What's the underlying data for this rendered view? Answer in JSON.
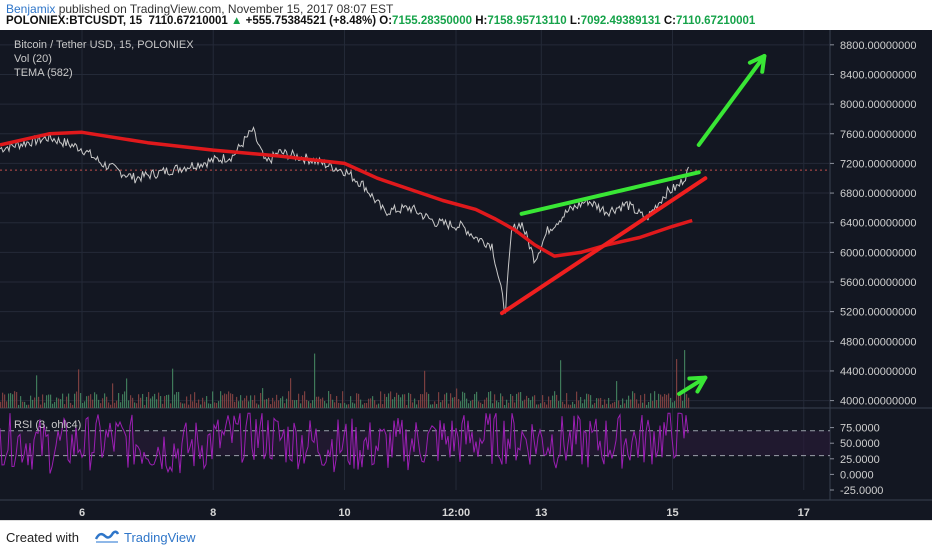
{
  "header": {
    "author": "Benjamix",
    "published_text": "published on TradingView.com, November 15, 2017 08:07 EST",
    "symbol": "POLONIEX:BTCUSDT, 15",
    "last": "7110.67210001",
    "change": "+555.75384521 (+8.48%)",
    "o_label": "O:",
    "o_value": "7155.28350000",
    "h_label": "H:",
    "h_value": "7158.95713110",
    "l_label": "L:",
    "l_value": "7092.49389131",
    "c_label": "C:",
    "c_value": "7110.67210001"
  },
  "legend": {
    "title": "Bitcoin / Tether USD, 15, POLONIEX",
    "vol": "Vol (20)",
    "tema": "TEMA (582)",
    "rsi": "RSI (3, ohlc4)"
  },
  "footer": {
    "created_with": "Created with",
    "brand": "TradingView"
  },
  "colors": {
    "background": "#131722",
    "price": "#c8c8c8",
    "tema": "#e0191c",
    "trend_green": "#39e635",
    "trend_red": "#ef1f1f",
    "rsi": "#9b1fb3",
    "accent": "#2f76c9"
  },
  "chart_data": {
    "type": "line",
    "series": [
      {
        "name": "Bitcoin / Tether USD, 15, POLONIEX",
        "x": [
          4.75,
          5.0,
          5.5,
          6.0,
          6.3,
          6.8,
          7.3,
          7.8,
          8.3,
          8.6,
          8.8,
          9.0,
          9.5,
          10.0,
          10.3,
          10.6,
          11.0,
          11.4,
          11.8,
          12.0,
          12.25,
          12.45,
          12.55,
          12.7,
          12.9,
          13.1,
          13.4,
          13.7,
          14.0,
          14.3,
          14.6,
          14.9,
          15.1,
          15.25
        ],
        "y": [
          7400,
          7450,
          7550,
          7400,
          7200,
          7000,
          7100,
          7200,
          7300,
          7650,
          7200,
          7350,
          7250,
          7100,
          6900,
          6550,
          6600,
          6400,
          6350,
          6200,
          6100,
          5200,
          6300,
          6400,
          5900,
          6300,
          6550,
          6700,
          6550,
          6650,
          6450,
          6800,
          6900,
          7110
        ]
      },
      {
        "name": "TEMA (582)",
        "x": [
          4.75,
          5.5,
          6.0,
          7.0,
          8.0,
          9.0,
          9.5,
          10.0,
          10.5,
          11.0,
          11.5,
          12.0,
          12.3,
          12.6,
          12.9,
          13.2,
          13.6,
          14.0,
          14.5,
          15.0,
          15.3
        ],
        "y": [
          7450,
          7600,
          7620,
          7480,
          7380,
          7300,
          7250,
          7200,
          7000,
          6850,
          6700,
          6580,
          6450,
          6300,
          6100,
          5950,
          6000,
          6100,
          6200,
          6350,
          6430
        ]
      },
      {
        "name": "RSI (3, ohlc4)",
        "x": [
          4.75,
          5.5,
          6.5,
          7.5,
          8.5,
          9.5,
          10.5,
          11.5,
          12.5,
          13.5,
          14.5,
          15.25
        ],
        "y": [
          60,
          45,
          55,
          40,
          65,
          50,
          45,
          55,
          60,
          50,
          55,
          70
        ]
      }
    ],
    "trendlines": [
      {
        "color": "green",
        "from": [
          12.7,
          6520
        ],
        "to": [
          15.4,
          7080
        ]
      },
      {
        "color": "red",
        "from": [
          12.4,
          5180
        ],
        "to": [
          15.5,
          7000
        ]
      },
      {
        "color": "green-arrow",
        "from": [
          15.4,
          7450
        ],
        "to": [
          16.4,
          8650
        ]
      },
      {
        "color": "green-arrow-volume",
        "from": [
          15.1,
          4090
        ],
        "to": [
          15.5,
          4310
        ]
      }
    ],
    "xlabel": "",
    "ylabel": "",
    "x_ticks": [
      {
        "x": 6,
        "label": "6"
      },
      {
        "x": 8,
        "label": "8"
      },
      {
        "x": 10,
        "label": "10"
      },
      {
        "x": 11.7,
        "label": "12:00"
      },
      {
        "x": 13,
        "label": "13"
      },
      {
        "x": 15,
        "label": "15"
      },
      {
        "x": 17,
        "label": "17"
      }
    ],
    "xlim": [
      4.75,
      17.4
    ],
    "ylim": [
      3900,
      9000
    ],
    "y_ticks": [
      "8800.00000000",
      "8400.00000000",
      "8000.00000000",
      "7600.00000000",
      "7200.00000000",
      "6800.00000000",
      "6400.00000000",
      "6000.00000000",
      "5600.00000000",
      "5200.00000000",
      "4800.00000000",
      "4400.00000000",
      "4000.00000000"
    ],
    "y_tick_values": [
      8800,
      8400,
      8000,
      7600,
      7200,
      6800,
      6400,
      6000,
      5600,
      5200,
      4800,
      4400,
      4000
    ],
    "rsi_ticks": [
      "75.0000",
      "50.0000",
      "25.0000",
      "0.0000",
      "-25.0000"
    ],
    "rsi_tick_values": [
      75,
      50,
      25,
      0,
      -25
    ],
    "rsi_levels": [
      70,
      30
    ],
    "current_price_line": 7110,
    "grid": true,
    "legend_position": "top-left"
  }
}
